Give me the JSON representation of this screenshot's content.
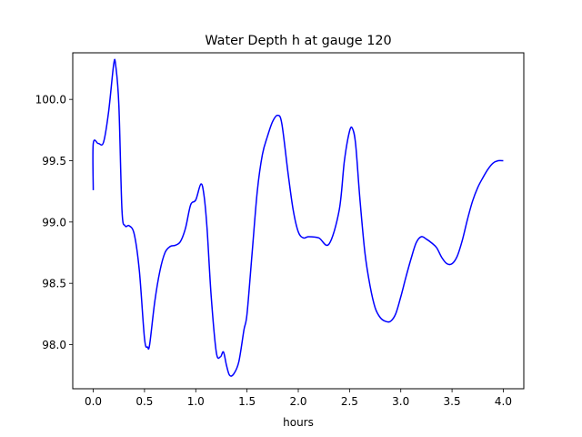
{
  "chart_data": {
    "type": "line",
    "title": "Water Depth h at gauge 120",
    "xlabel": "hours",
    "ylabel": "",
    "xlim": [
      -0.2,
      4.2
    ],
    "ylim": [
      97.64,
      100.38
    ],
    "xticks": [
      0.0,
      0.5,
      1.0,
      1.5,
      2.0,
      2.5,
      3.0,
      3.5,
      4.0
    ],
    "xtick_labels": [
      "0.0",
      "0.5",
      "1.0",
      "1.5",
      "2.0",
      "2.5",
      "3.0",
      "3.5",
      "4.0"
    ],
    "yticks": [
      98.0,
      98.5,
      99.0,
      99.5,
      100.0
    ],
    "ytick_labels": [
      "98.0",
      "98.5",
      "99.0",
      "99.5",
      "100.0"
    ],
    "grid": false,
    "series": [
      {
        "color": "#0000ff",
        "x": [
          0.0,
          0.0,
          0.05,
          0.1,
          0.15,
          0.2,
          0.22,
          0.25,
          0.28,
          0.31,
          0.35,
          0.4,
          0.45,
          0.5,
          0.53,
          0.55,
          0.6,
          0.65,
          0.7,
          0.75,
          0.8,
          0.85,
          0.9,
          0.95,
          1.0,
          1.05,
          1.08,
          1.11,
          1.15,
          1.2,
          1.24,
          1.27,
          1.3,
          1.33,
          1.37,
          1.42,
          1.47,
          1.5,
          1.55,
          1.6,
          1.65,
          1.7,
          1.75,
          1.8,
          1.84,
          1.9,
          1.95,
          2.0,
          2.05,
          2.1,
          2.2,
          2.3,
          2.4,
          2.45,
          2.5,
          2.53,
          2.56,
          2.6,
          2.65,
          2.7,
          2.75,
          2.8,
          2.85,
          2.9,
          2.95,
          3.0,
          3.05,
          3.1,
          3.15,
          3.2,
          3.25,
          3.3,
          3.35,
          3.4,
          3.45,
          3.5,
          3.55,
          3.6,
          3.65,
          3.7,
          3.75,
          3.8,
          3.85,
          3.9,
          3.95,
          4.0
        ],
        "y": [
          99.26,
          99.64,
          99.64,
          99.65,
          99.9,
          100.29,
          100.27,
          99.95,
          99.1,
          98.97,
          98.97,
          98.9,
          98.6,
          98.05,
          97.98,
          98.0,
          98.35,
          98.6,
          98.75,
          98.8,
          98.81,
          98.84,
          98.95,
          99.14,
          99.18,
          99.31,
          99.22,
          98.95,
          98.4,
          97.94,
          97.9,
          97.94,
          97.83,
          97.75,
          97.76,
          97.86,
          98.12,
          98.25,
          98.75,
          99.25,
          99.55,
          99.7,
          99.82,
          99.87,
          99.8,
          99.4,
          99.1,
          98.92,
          98.87,
          98.88,
          98.87,
          98.82,
          99.1,
          99.5,
          99.74,
          99.76,
          99.63,
          99.2,
          98.75,
          98.48,
          98.3,
          98.22,
          98.19,
          98.19,
          98.25,
          98.39,
          98.55,
          98.7,
          98.83,
          98.88,
          98.86,
          98.83,
          98.79,
          98.71,
          98.66,
          98.66,
          98.72,
          98.85,
          99.02,
          99.17,
          99.28,
          99.36,
          99.43,
          99.48,
          99.5,
          99.5
        ]
      }
    ]
  }
}
